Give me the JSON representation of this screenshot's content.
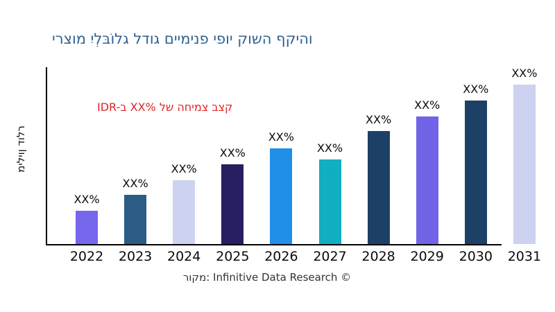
{
  "title": {
    "text": "ירצומ יִלְבּוֹלג לדוג םיימינפ יפוי קושה ףקיהו",
    "color": "#31618F"
  },
  "annotation": {
    "text": "IDR-ב XX% לש החימצ בצק",
    "color": "#E02424"
  },
  "y_axis_label": "מיליון דולר",
  "source_line": "רוקמ: Infinitive Data Research ©",
  "chart_data": {
    "type": "bar",
    "title": "ירצומ יִלְבּוֹלג לדוג םיימינפ יפוי קושה ףקיהו",
    "xlabel": "",
    "ylabel": "מיליון דולר",
    "categories": [
      "2022",
      "2023",
      "2024",
      "2025",
      "2026",
      "2027",
      "2028",
      "2029",
      "2030",
      "2031"
    ],
    "series": [
      {
        "name": "market-size",
        "values_relative_pct_of_max": [
          21,
          31,
          40,
          50,
          60,
          53,
          71,
          80,
          90,
          100
        ]
      }
    ],
    "bar_labels": [
      "XX%",
      "XX%",
      "XX%",
      "XX%",
      "XX%",
      "XX%",
      "XX%",
      "XX%",
      "XX%",
      "XX%"
    ],
    "bar_colors": [
      "#7666EC",
      "#2B5C85",
      "#CDD2F0",
      "#262060",
      "#1F8FE8",
      "#12AFC0",
      "#1D4066",
      "#7164E6",
      "#1D4066",
      "#CDD2F0"
    ],
    "annotation": "IDR-ב XX% לש החימצ בצק",
    "grid": false,
    "legend": false,
    "y_tick_labels_shown": false
  }
}
